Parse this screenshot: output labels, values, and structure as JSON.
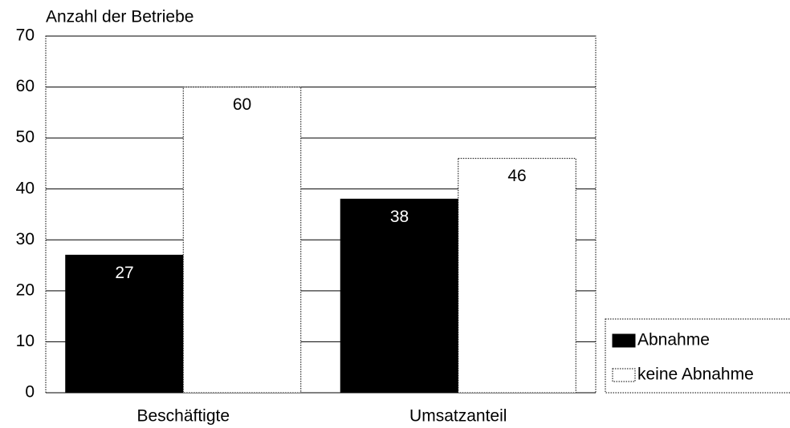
{
  "chart_data": {
    "type": "bar",
    "y_axis_label": "Anzahl der Betriebe",
    "categories": [
      "Beschäftigte",
      "Umsatzanteil"
    ],
    "series": [
      {
        "name": "Abnahme",
        "color": "#000000",
        "values": [
          27,
          38
        ]
      },
      {
        "name": "keine Abnahme",
        "color": "#ffffff",
        "values": [
          60,
          46
        ]
      }
    ],
    "ylim": [
      0,
      70
    ],
    "yticks": [
      0,
      10,
      20,
      30,
      40,
      50,
      60,
      70
    ],
    "grid": true,
    "legend": "lower right"
  }
}
